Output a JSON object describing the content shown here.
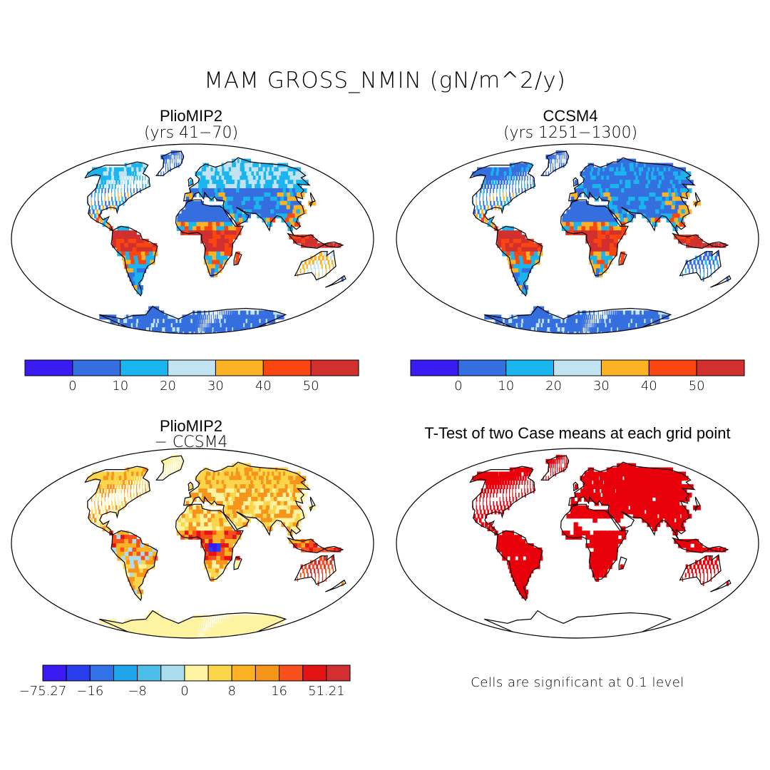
{
  "figure": {
    "title": "MAM GROSS_NMIN (gN/m^2/y)"
  },
  "panels": [
    {
      "id": "pliomip2",
      "title": "PlioMIP2",
      "subtitle": "(yrs 41−70)"
    },
    {
      "id": "ccsm4",
      "title": "CCSM4",
      "subtitle": "(yrs 1251−1300)"
    },
    {
      "id": "diff",
      "title": "PlioMIP2",
      "subtitle": "− CCSM4"
    },
    {
      "id": "ttest",
      "title": "T-Test of two Case means at each grid point",
      "subtitle": ""
    }
  ],
  "colorbar_main": {
    "colors": [
      "#3a1cf2",
      "#356fdf",
      "#1ab4ee",
      "#c2e3f2",
      "#fbb325",
      "#f9450f",
      "#d22f2f"
    ],
    "labels": [
      "0",
      "10",
      "20",
      "30",
      "40",
      "50"
    ]
  },
  "colorbar_diff": {
    "colors": [
      "#3a1cf2",
      "#2a3ef0",
      "#3173e6",
      "#1ea4ea",
      "#4dbde9",
      "#abdcef",
      "#fdf3a0",
      "#fcd64a",
      "#fbb325",
      "#f7951a",
      "#f8501a",
      "#e41414",
      "#d22f2f"
    ],
    "labels": [
      "−75.27",
      "−16",
      "−8",
      "0",
      "8",
      "16",
      "51.21"
    ]
  },
  "significance": {
    "note": "Cells are significant at 0.1 level",
    "color": "#e8000b"
  },
  "field_colors": {
    "ocean": "#ffffff",
    "coast": "#000000"
  }
}
